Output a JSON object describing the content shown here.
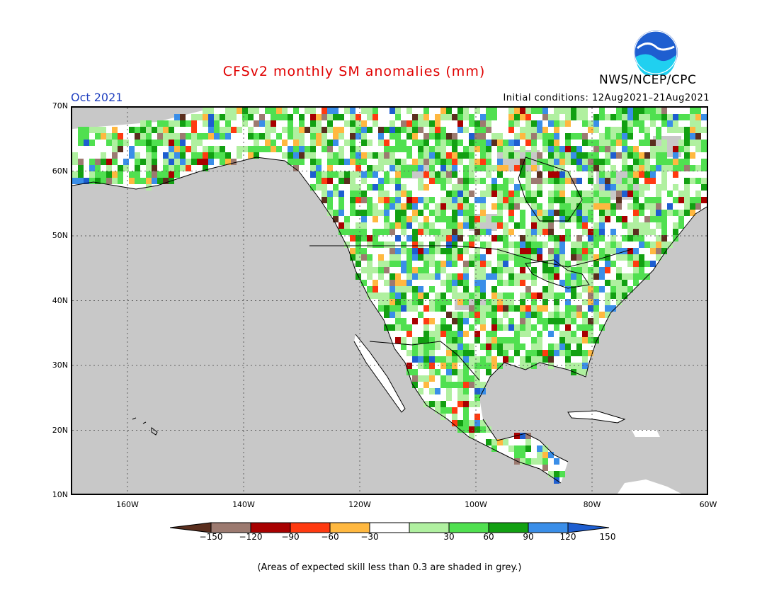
{
  "title": "CFSv2 monthly SM anomalies (mm)",
  "valid_month": "Oct 2021",
  "initial_conditions": "Initial conditions: 12Aug2021–21Aug2021",
  "agency": "NWS/NCEP/CPC",
  "logo_text": "NOAA",
  "footnote": "(Areas of expected skill less than 0.3 are shaded in grey.)",
  "latitude_ticks": [
    "70N",
    "60N",
    "50N",
    "40N",
    "30N",
    "20N",
    "10N"
  ],
  "longitude_ticks": [
    "160W",
    "140W",
    "120W",
    "100W",
    "80W",
    "60W"
  ],
  "colorbar": {
    "labels": [
      "−150",
      "−120",
      "−90",
      "−60",
      "−30",
      "30",
      "60",
      "90",
      "120",
      "150"
    ],
    "colors": [
      "#5a2e1e",
      "#9c7a70",
      "#a80000",
      "#ff3a10",
      "#ffb840",
      "#ffffff",
      "#b0f0a0",
      "#50e050",
      "#12a012",
      "#3a8ee8",
      "#1e5ed0"
    ]
  },
  "colors": {
    "low_skill_grey": "#c8c8c8",
    "title_red": "#e00000",
    "month_blue": "#2040c0"
  }
}
